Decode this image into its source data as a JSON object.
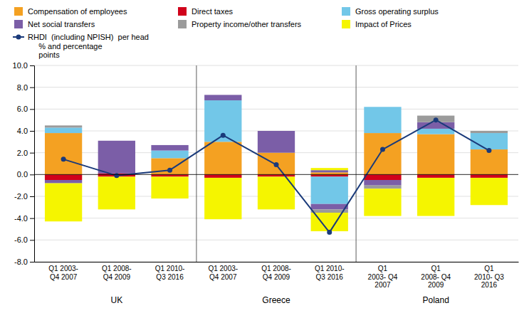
{
  "chart_data": {
    "type": "bar",
    "stacked": true,
    "categories": [
      "Q1 2003-\nQ4 2007",
      "Q1 2008-\nQ4 2009",
      "Q1 2010-\nQ3 2016",
      "Q1 2003-\nQ4 2007",
      "Q1 2008-\nQ4 2009",
      "Q1 2010-\nQ3 2016",
      "Q1\n2003- Q4\n2007",
      "Q1\n2008- Q4\n2009",
      "Q1\n2010- Q3\n2016"
    ],
    "category_groups": [
      "UK",
      "UK",
      "UK",
      "Greece",
      "Greece",
      "Greece",
      "Poland",
      "Poland",
      "Poland"
    ],
    "series": [
      {
        "name": "Compensation of employees",
        "color": "#F4A122",
        "values": [
          3.8,
          0.0,
          1.5,
          3.0,
          2.0,
          0.2,
          3.8,
          3.7,
          2.3
        ],
        "negative_values": [
          0.0,
          0.0,
          0.0,
          0.0,
          0.0,
          0.0,
          0.0,
          0.0,
          0.0
        ]
      },
      {
        "name": "Direct taxes",
        "color": "#D0021B",
        "values": [
          0.0,
          0.1,
          0.0,
          0.0,
          0.0,
          0.0,
          0.0,
          0.0,
          0.0
        ],
        "negative_values": [
          -0.5,
          -0.2,
          -0.2,
          -0.3,
          -0.2,
          -0.2,
          -0.5,
          -0.3,
          -0.3
        ]
      },
      {
        "name": "Gross operating surplus",
        "color": "#72C7E8",
        "values": [
          0.5,
          0.0,
          0.7,
          3.8,
          0.0,
          0.0,
          2.4,
          0.5,
          1.5
        ],
        "negative_values": [
          0.0,
          0.0,
          0.0,
          0.0,
          0.0,
          -2.5,
          0.0,
          0.0,
          0.0
        ]
      },
      {
        "name": "Net social transfers",
        "color": "#7B5EA7",
        "values": [
          0.0,
          3.0,
          0.5,
          0.5,
          2.0,
          0.2,
          0.0,
          0.6,
          0.0
        ],
        "negative_values": [
          -0.3,
          0.0,
          0.0,
          0.0,
          0.0,
          -0.5,
          -0.5,
          0.0,
          0.0
        ]
      },
      {
        "name": "Property income/other transfers",
        "color": "#9B9B9B",
        "values": [
          0.2,
          0.0,
          0.0,
          0.0,
          0.0,
          0.0,
          0.0,
          0.6,
          0.2
        ],
        "negative_values": [
          0.0,
          0.0,
          0.0,
          0.0,
          0.0,
          -0.3,
          -0.3,
          0.0,
          0.0
        ]
      },
      {
        "name": "Impact of Prices",
        "color": "#F5F500",
        "values": [
          0.0,
          0.0,
          0.0,
          0.0,
          0.0,
          0.2,
          0.0,
          0.0,
          0.0
        ],
        "negative_values": [
          -3.5,
          -3.0,
          -2.0,
          -3.8,
          -3.0,
          -1.7,
          -2.5,
          -3.5,
          -2.5
        ]
      },
      {
        "name": "RHDI  (including NPISH)  per head\n     % and percentage\n     points",
        "type": "line",
        "color": "#1A3A7A",
        "marker": "circle",
        "values": [
          1.4,
          -0.1,
          0.4,
          3.6,
          0.9,
          -5.3,
          2.3,
          5.0,
          2.2
        ]
      }
    ],
    "ylim": [
      -8.0,
      10.0
    ],
    "yticks": [
      {
        "value": -8,
        "label": "-8.0"
      },
      {
        "value": -6,
        "label": "-6.0"
      },
      {
        "value": -4,
        "label": "-4.0"
      },
      {
        "value": -2,
        "label": "-2.0"
      },
      {
        "value": 0,
        "label": "0.0"
      },
      {
        "value": 2,
        "label": "2.0"
      },
      {
        "value": 4,
        "label": "4.0"
      },
      {
        "value": 6,
        "label": "6.0"
      },
      {
        "value": 8,
        "label": "8.0"
      },
      {
        "value": 10,
        "label": "10.0"
      }
    ],
    "grid": true,
    "legend": "top"
  }
}
